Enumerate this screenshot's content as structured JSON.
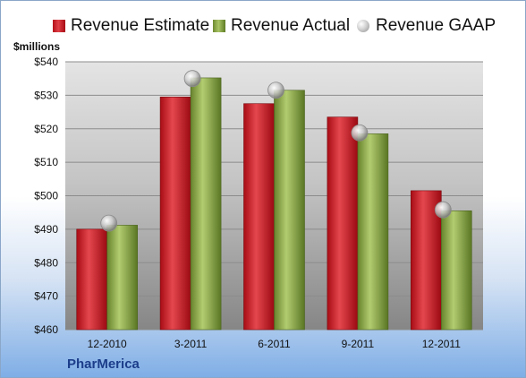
{
  "legend": {
    "estimate_label": "Revenue Estimate",
    "actual_label": "Revenue Actual",
    "gaap_label": "Revenue GAAP"
  },
  "unit_label": "$millions",
  "company": "PharMerica",
  "colors": {
    "estimate": "#c8161e",
    "actual": "#8fae4c",
    "gaap": "#b8b8b8",
    "plot_top": "#dcdcdc",
    "plot_bottom": "#8a8a8a"
  },
  "chart_data": {
    "type": "bar",
    "categories": [
      "12-2010",
      "3-2011",
      "6-2011",
      "9-2011",
      "12-2011"
    ],
    "series": [
      {
        "name": "Revenue Estimate",
        "values": [
          490.0,
          529.5,
          527.5,
          523.5,
          501.5
        ]
      },
      {
        "name": "Revenue Actual",
        "values": [
          491.2,
          535.2,
          531.5,
          518.5,
          495.5
        ]
      },
      {
        "name": "Revenue GAAP",
        "values": [
          491.8,
          535.0,
          531.5,
          518.8,
          495.8
        ],
        "marker": "circle"
      }
    ],
    "ylim": [
      460,
      540
    ],
    "yticks": [
      "$460",
      "$470",
      "$480",
      "$490",
      "$500",
      "$510",
      "$520",
      "$530",
      "$540"
    ],
    "ytick_values": [
      460,
      470,
      480,
      490,
      500,
      510,
      520,
      530,
      540
    ],
    "ylabel": "$millions",
    "grid": true,
    "legend_position": "top"
  }
}
